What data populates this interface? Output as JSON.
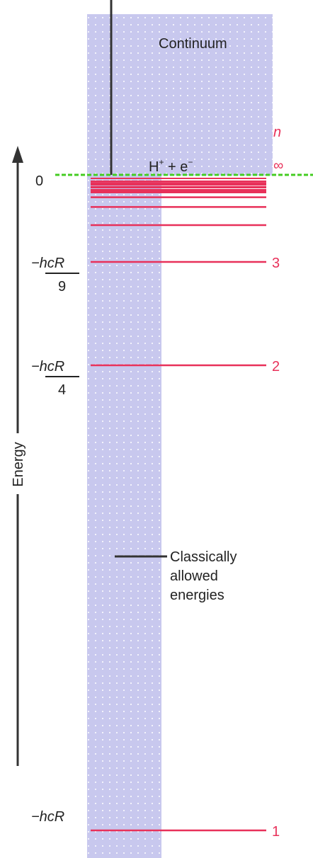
{
  "labels": {
    "continuum": "Continuum",
    "ionized": {
      "base1": "H",
      "sup1": "+",
      "mid": " + e",
      "sup2": "−"
    },
    "energy_axis": "Energy",
    "classical_line1": "Classically",
    "classical_line2": "allowed",
    "classical_line3": "energies",
    "n_symbol": "n",
    "infinity": "∞"
  },
  "energy_ticks": [
    {
      "id": "zero",
      "text": "0"
    },
    {
      "id": "n3",
      "num": "−hcR",
      "den": "9"
    },
    {
      "id": "n2",
      "num": "−hcR",
      "den": "4"
    },
    {
      "id": "n1",
      "text": "−hcR"
    }
  ],
  "levels": [
    {
      "n": 1,
      "label": "1",
      "energy_frac": -1
    },
    {
      "n": 2,
      "label": "2",
      "energy_frac": -0.25
    },
    {
      "n": 3,
      "label": "3",
      "energy_frac": -0.1111
    },
    {
      "n": 4,
      "label": "",
      "energy_frac": -0.0625
    },
    {
      "n": 5,
      "label": "",
      "energy_frac": -0.04
    },
    {
      "n": 6,
      "label": "",
      "energy_frac": -0.0278
    },
    {
      "n": 7,
      "label": "",
      "energy_frac": -0.0204
    },
    {
      "n": 8,
      "label": "",
      "energy_frac": -0.0156
    },
    {
      "n": 9,
      "label": "",
      "energy_frac": -0.0123
    },
    {
      "n": 10,
      "label": "",
      "energy_frac": -0.01
    }
  ],
  "colors": {
    "band": "#c8c8ee",
    "level": "#e8315a",
    "ionization_line": "#44cc22",
    "axis": "#333333",
    "text": "#222222",
    "level_label": "#e8315a"
  }
}
